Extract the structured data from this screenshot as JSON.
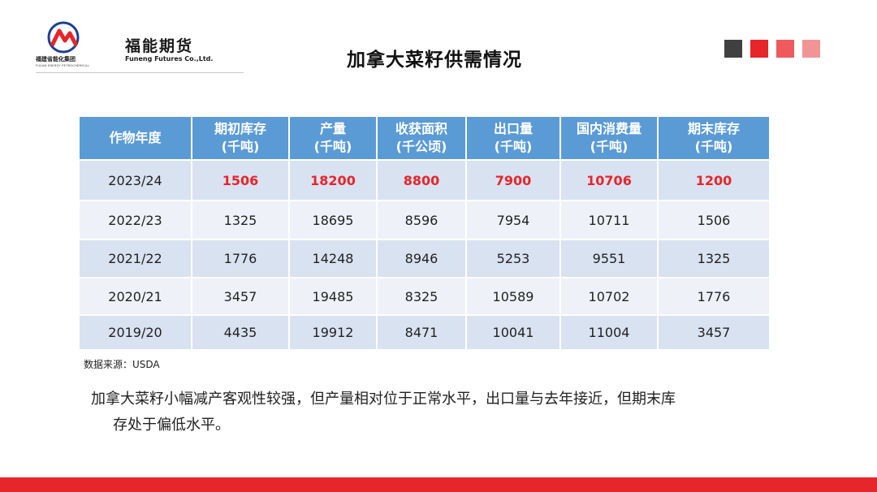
{
  "logo": {
    "name_cn": "福能期货",
    "name_en": "Funeng Futures Co.,Ltd.",
    "group_cn": "福建省能化集团",
    "group_en": "FUJIAN ENERGY PETROCHEMICAL"
  },
  "title": "加拿大菜籽供需情况",
  "colors": {
    "red": "#e6262b",
    "blue": "#5b9bd5",
    "row_a": "#d9e2f1",
    "row_b": "#eef2f8"
  },
  "decor_squares": [
    "#404040",
    "#e6262b",
    "#ef5a5e",
    "#f29396"
  ],
  "table": {
    "headers": [
      {
        "line1": "作物年度",
        "line2": ""
      },
      {
        "line1": "期初库存",
        "line2": "(千吨)"
      },
      {
        "line1": "产量",
        "line2": "(千吨)"
      },
      {
        "line1": "收获面积",
        "line2": "(千公顷)"
      },
      {
        "line1": "出口量",
        "line2": "(千吨)"
      },
      {
        "line1": "国内消费量",
        "line2": "(千吨)"
      },
      {
        "line1": "期末库存",
        "line2": "(千吨)"
      }
    ],
    "rows": [
      [
        "2023/24",
        "1506",
        "18200",
        "8800",
        "7900",
        "10706",
        "1200"
      ],
      [
        "2022/23",
        "1325",
        "18695",
        "8596",
        "7954",
        "10711",
        "1506"
      ],
      [
        "2021/22",
        "1776",
        "14248",
        "8946",
        "5253",
        "9551",
        "1325"
      ],
      [
        "2020/21",
        "3457",
        "19485",
        "8325",
        "10589",
        "10702",
        "1776"
      ],
      [
        "2019/20",
        "4435",
        "19912",
        "8471",
        "10041",
        "11004",
        "3457"
      ]
    ]
  },
  "source": "数据来源：USDA",
  "conclusion": {
    "line1": "加拿大菜籽小幅减产客观性较强，但产量相对位于正常水平，出口量与去年接近，但期末库",
    "line2": "存处于偏低水平。"
  }
}
